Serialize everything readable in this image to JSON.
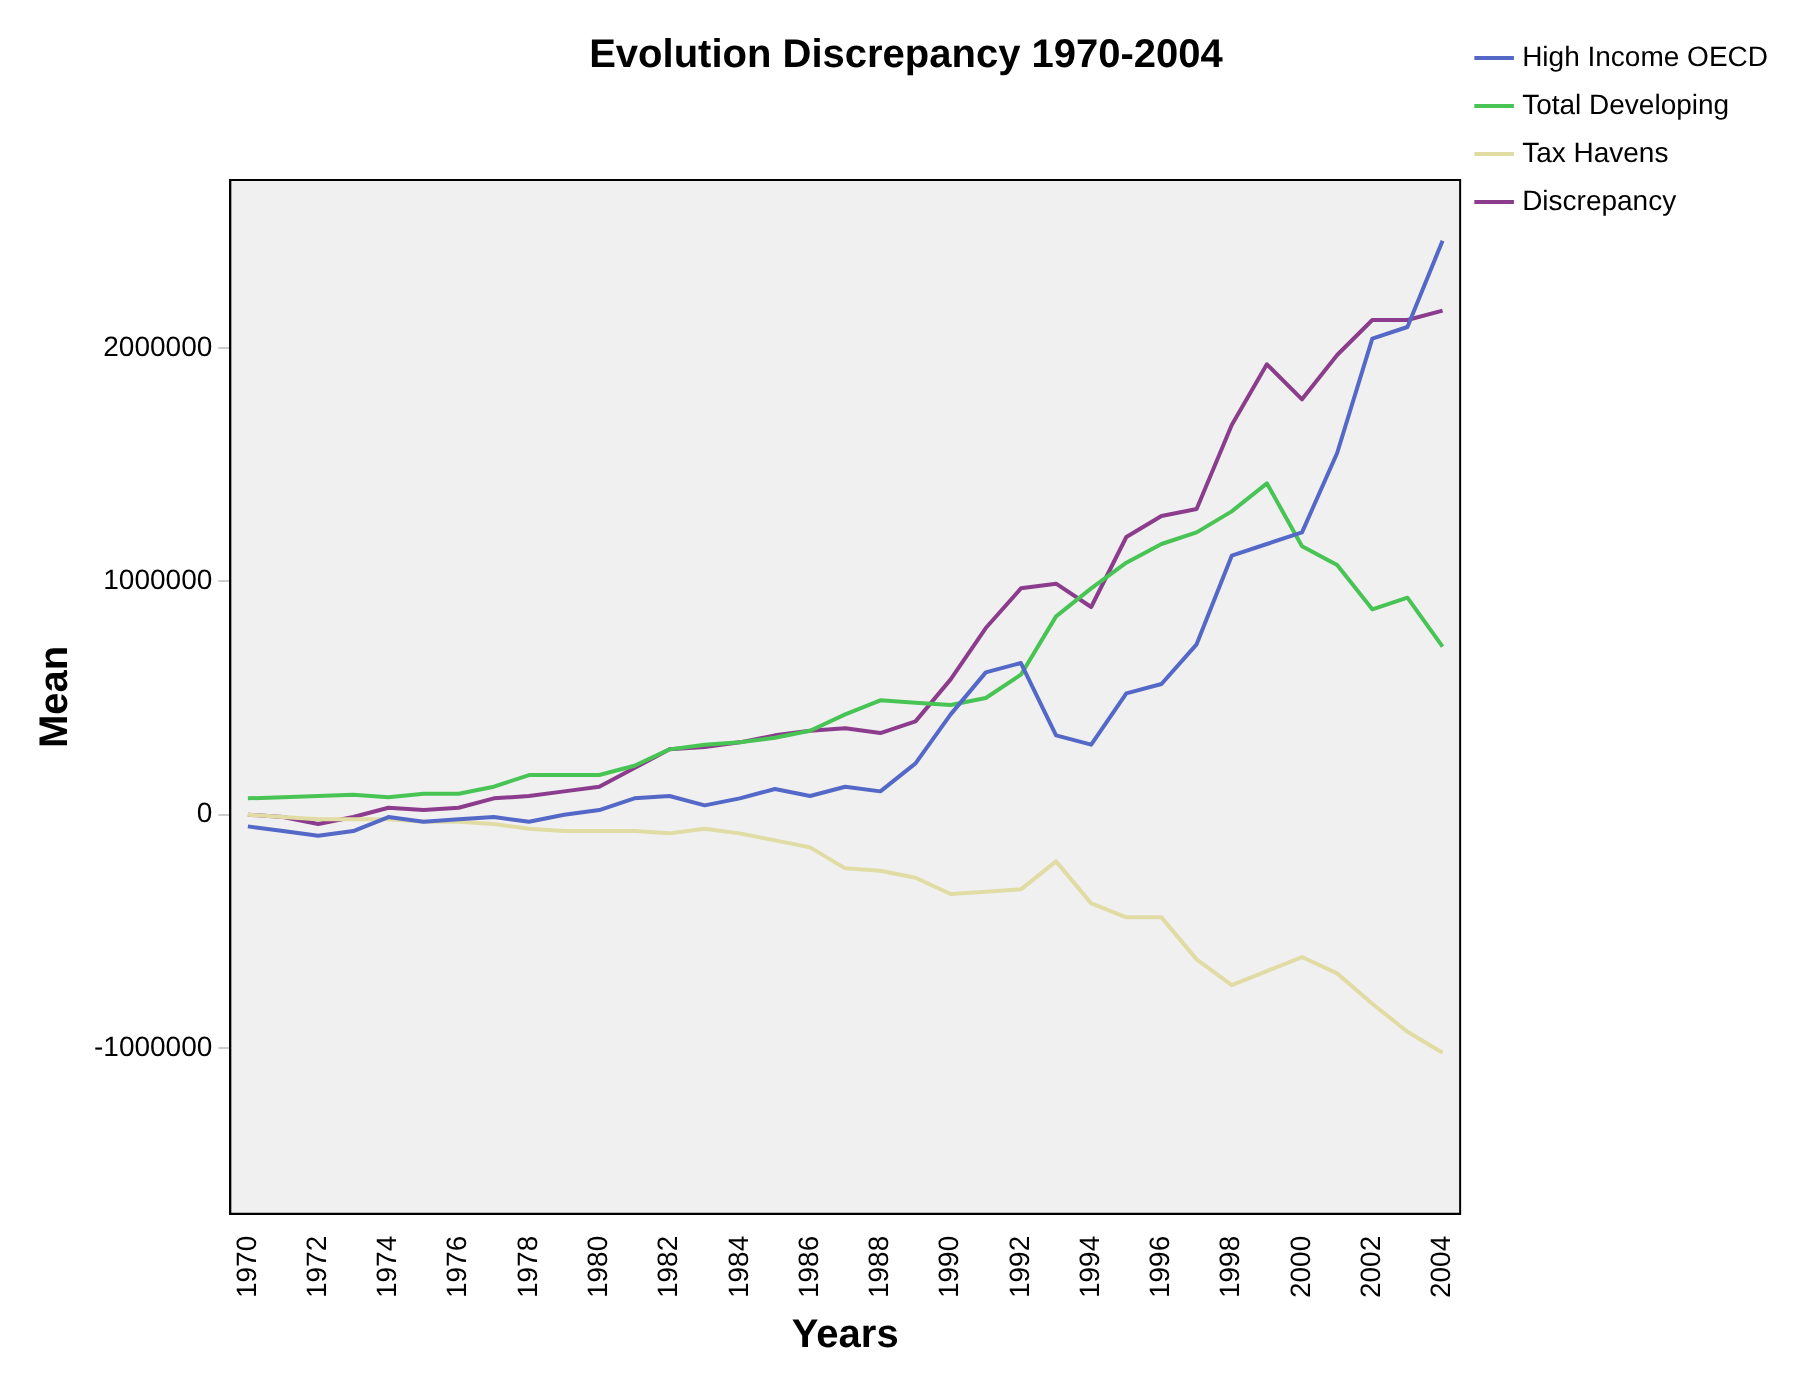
{
  "chart_data": {
    "type": "line",
    "title": "Evolution Discrepancy 1970-2004",
    "xlabel": "Years",
    "ylabel": "Mean",
    "categories": [
      "1970",
      null,
      "1972",
      null,
      "1974",
      null,
      "1976",
      null,
      "1978",
      null,
      "1980",
      null,
      "1982",
      null,
      "1984",
      null,
      "1986",
      null,
      "1988",
      null,
      "1990",
      null,
      "1992",
      null,
      "1994",
      null,
      "1996",
      null,
      "1998",
      null,
      "2000",
      null,
      "2002",
      null,
      "2004"
    ],
    "series": [
      {
        "name": "High Income OECD",
        "color": "#5468c8",
        "values": [
          -50000,
          -70000,
          -90000,
          -70000,
          -10000,
          -30000,
          -20000,
          -10000,
          -30000,
          0,
          20000,
          70000,
          80000,
          40000,
          70000,
          110000,
          80000,
          120000,
          100000,
          220000,
          430000,
          610000,
          650000,
          340000,
          300000,
          520000,
          560000,
          730000,
          1110000,
          1160000,
          1210000,
          1550000,
          2040000,
          2090000,
          2460000
        ]
      },
      {
        "name": "Total Developing",
        "color": "#48c454",
        "values": [
          70000,
          75000,
          80000,
          85000,
          75000,
          90000,
          90000,
          120000,
          170000,
          170000,
          170000,
          210000,
          280000,
          300000,
          310000,
          330000,
          360000,
          430000,
          490000,
          480000,
          470000,
          500000,
          600000,
          850000,
          970000,
          1080000,
          1160000,
          1210000,
          1300000,
          1420000,
          1150000,
          1070000,
          880000,
          930000,
          720000
        ]
      },
      {
        "name": "Tax Havens",
        "color": "#e0dca4",
        "values": [
          0,
          -10000,
          -20000,
          -20000,
          -20000,
          -30000,
          -30000,
          -40000,
          -60000,
          -70000,
          -70000,
          -70000,
          -80000,
          -60000,
          -80000,
          -110000,
          -140000,
          -230000,
          -240000,
          -270000,
          -340000,
          -330000,
          -320000,
          -200000,
          -380000,
          -440000,
          -440000,
          -620000,
          -730000,
          -670000,
          -610000,
          -680000,
          -810000,
          -930000,
          -1020000
        ]
      },
      {
        "name": "Discrepancy",
        "color": "#8c3c8c",
        "values": [
          0,
          -10000,
          -40000,
          -10000,
          30000,
          20000,
          30000,
          70000,
          80000,
          100000,
          120000,
          200000,
          280000,
          290000,
          310000,
          340000,
          360000,
          370000,
          350000,
          400000,
          580000,
          800000,
          970000,
          990000,
          890000,
          1190000,
          1280000,
          1310000,
          1670000,
          1930000,
          1780000,
          1970000,
          2120000,
          2120000,
          2160000
        ]
      }
    ],
    "ylim": [
      -1710000,
      2720000
    ],
    "yticks": [
      -1000000,
      0,
      1000000,
      2000000
    ],
    "grid": false,
    "legend": "top right",
    "marker": "none",
    "line_style": "solid"
  }
}
